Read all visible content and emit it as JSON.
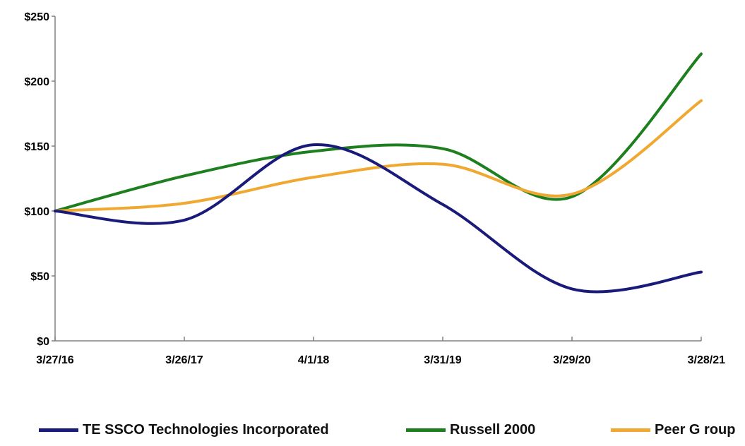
{
  "chart_data": {
    "type": "line",
    "title": "",
    "xlabel": "",
    "ylabel": "",
    "categories": [
      "3/27/16",
      "3/26/17",
      "4/1/18",
      "3/31/19",
      "3/29/20",
      "3/28/21"
    ],
    "ylim": [
      0,
      250
    ],
    "y_ticks": [
      "$0",
      "$50",
      "$100",
      "$150",
      "$200",
      "$250"
    ],
    "y_tick_values": [
      0,
      50,
      100,
      150,
      200,
      250
    ],
    "grid": false,
    "legend_position": "bottom",
    "series": [
      {
        "name": "TESSCO Technologies Incorporated",
        "color": "#1a1a7a",
        "values": [
          100,
          93,
          151,
          105,
          40,
          53
        ]
      },
      {
        "name": "Russell 2000",
        "color": "#1e7f1e",
        "values": [
          100,
          127,
          146,
          148,
          111,
          221
        ]
      },
      {
        "name": "Peer Group",
        "color": "#f0a830",
        "values": [
          100,
          106,
          126,
          136,
          113,
          185
        ]
      }
    ]
  },
  "legend_labels": {
    "tessco": "TE SSCO Technologies Incorporated",
    "russell": "Russell 2000",
    "peer": "Peer G roup"
  }
}
